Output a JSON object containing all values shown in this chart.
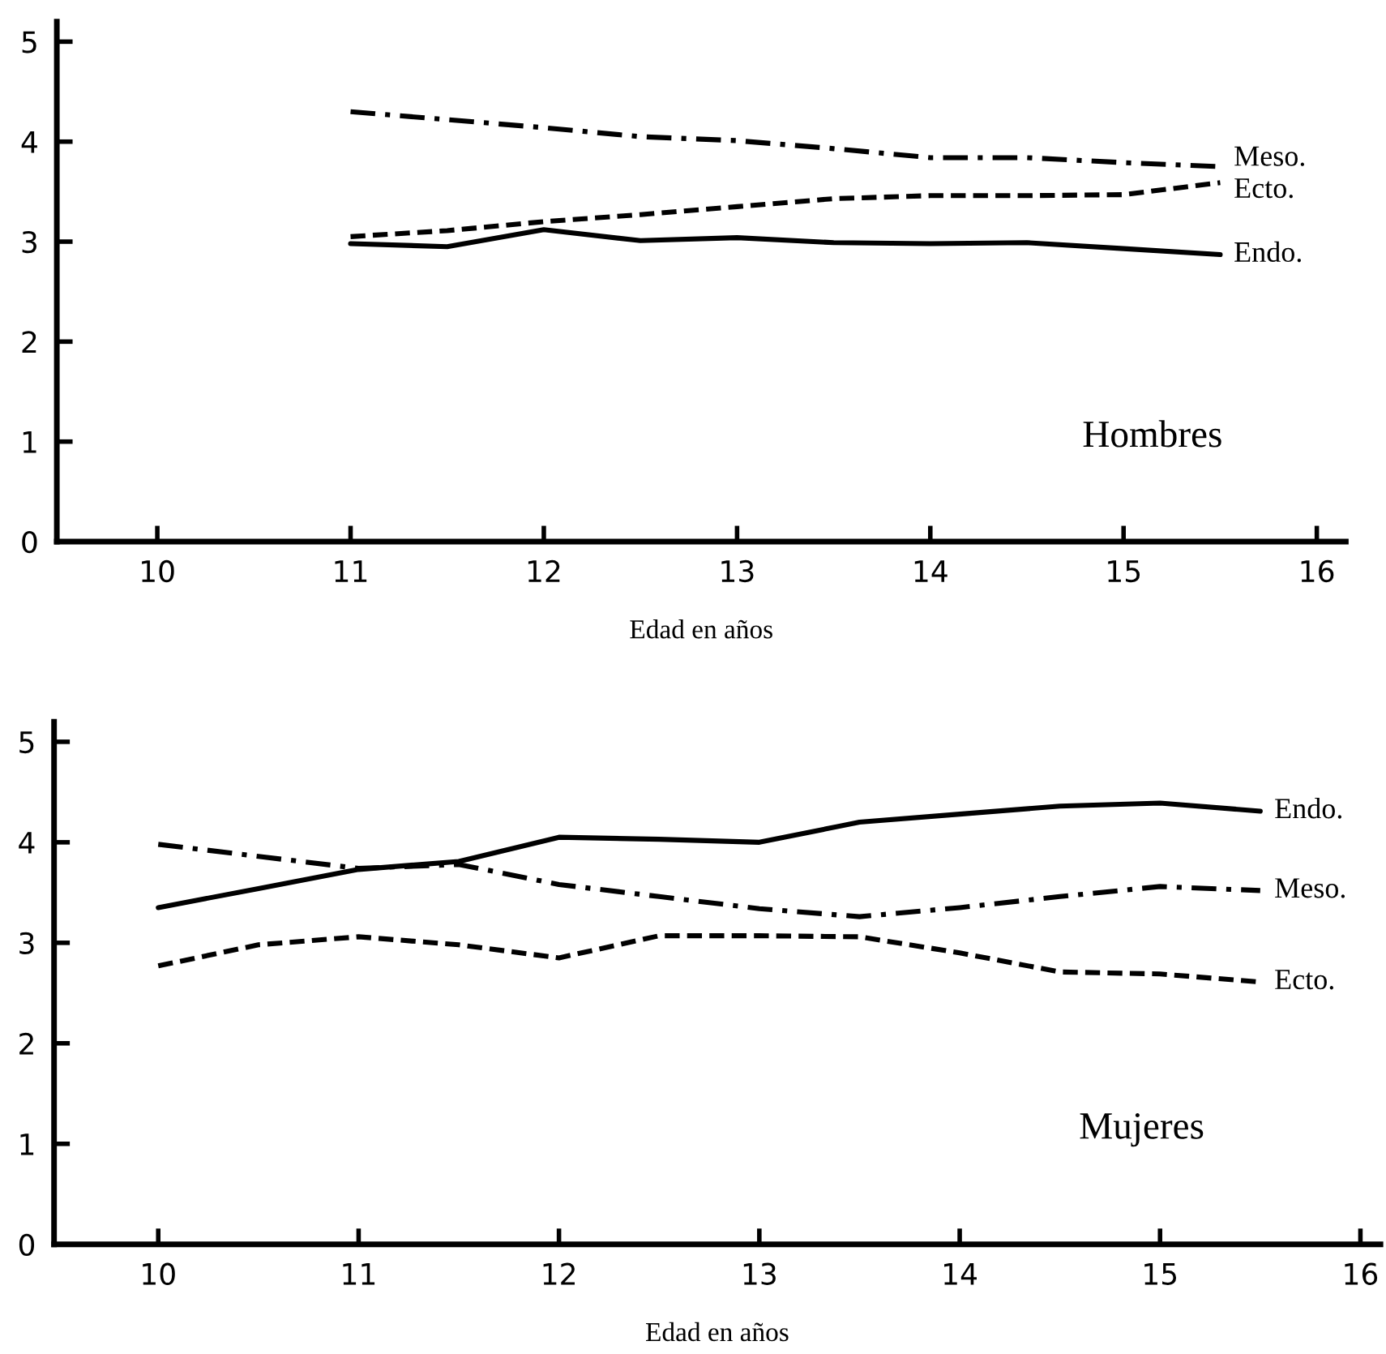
{
  "chart_data": [
    {
      "type": "line",
      "xlabel": "Edad en años",
      "xlim": [
        9.48,
        16.15
      ],
      "ylim": [
        0,
        5.2
      ],
      "xticks": [
        10,
        11,
        12,
        13,
        14,
        15,
        16
      ],
      "yticks": [
        0,
        1,
        2,
        3,
        4,
        5
      ],
      "grid": false,
      "legend": false,
      "marker": "none",
      "annotations": [
        "Hombres"
      ],
      "x": [
        11,
        11.5,
        12,
        12.5,
        13,
        13.5,
        14,
        14.5,
        15,
        15.5
      ],
      "series": [
        {
          "name": "Meso.",
          "color": "#000000",
          "line_style": "dashdot",
          "values": [
            4.3,
            4.22,
            4.14,
            4.05,
            4.01,
            3.93,
            3.84,
            3.84,
            3.79,
            3.75
          ]
        },
        {
          "name": "Ecto.",
          "color": "#000000",
          "line_style": "dashed",
          "values": [
            3.05,
            3.11,
            3.2,
            3.27,
            3.35,
            3.43,
            3.46,
            3.46,
            3.47,
            3.59
          ]
        },
        {
          "name": "Endo.",
          "color": "#000000",
          "line_style": "solid",
          "values": [
            2.98,
            2.95,
            3.12,
            3.01,
            3.04,
            2.99,
            2.98,
            2.99,
            2.93,
            2.87
          ]
        }
      ]
    },
    {
      "type": "line",
      "xlabel": "Edad en años",
      "xlim": [
        9.48,
        16.1
      ],
      "ylim": [
        0,
        5.2
      ],
      "xticks": [
        10,
        11,
        12,
        13,
        14,
        15,
        16
      ],
      "yticks": [
        0,
        1,
        2,
        3,
        4,
        5
      ],
      "grid": false,
      "legend": false,
      "marker": "none",
      "annotations": [
        "Mujeres"
      ],
      "x": [
        10,
        10.5,
        11,
        11.5,
        12,
        12.5,
        13,
        13.5,
        14,
        14.5,
        15,
        15.5
      ],
      "series": [
        {
          "name": "Endo.",
          "color": "#000000",
          "line_style": "solid",
          "values": [
            3.35,
            3.54,
            3.73,
            3.81,
            4.05,
            4.03,
            4.0,
            4.2,
            4.28,
            4.36,
            4.39,
            4.31
          ]
        },
        {
          "name": "Meso.",
          "color": "#000000",
          "line_style": "dashdot",
          "values": [
            3.98,
            3.86,
            3.74,
            3.78,
            3.58,
            3.46,
            3.34,
            3.26,
            3.35,
            3.46,
            3.56,
            3.52
          ]
        },
        {
          "name": "Ecto.",
          "color": "#000000",
          "line_style": "dashed",
          "values": [
            2.77,
            2.98,
            3.06,
            2.98,
            2.85,
            3.07,
            3.07,
            3.06,
            2.9,
            2.71,
            2.69,
            2.61
          ]
        }
      ]
    }
  ]
}
